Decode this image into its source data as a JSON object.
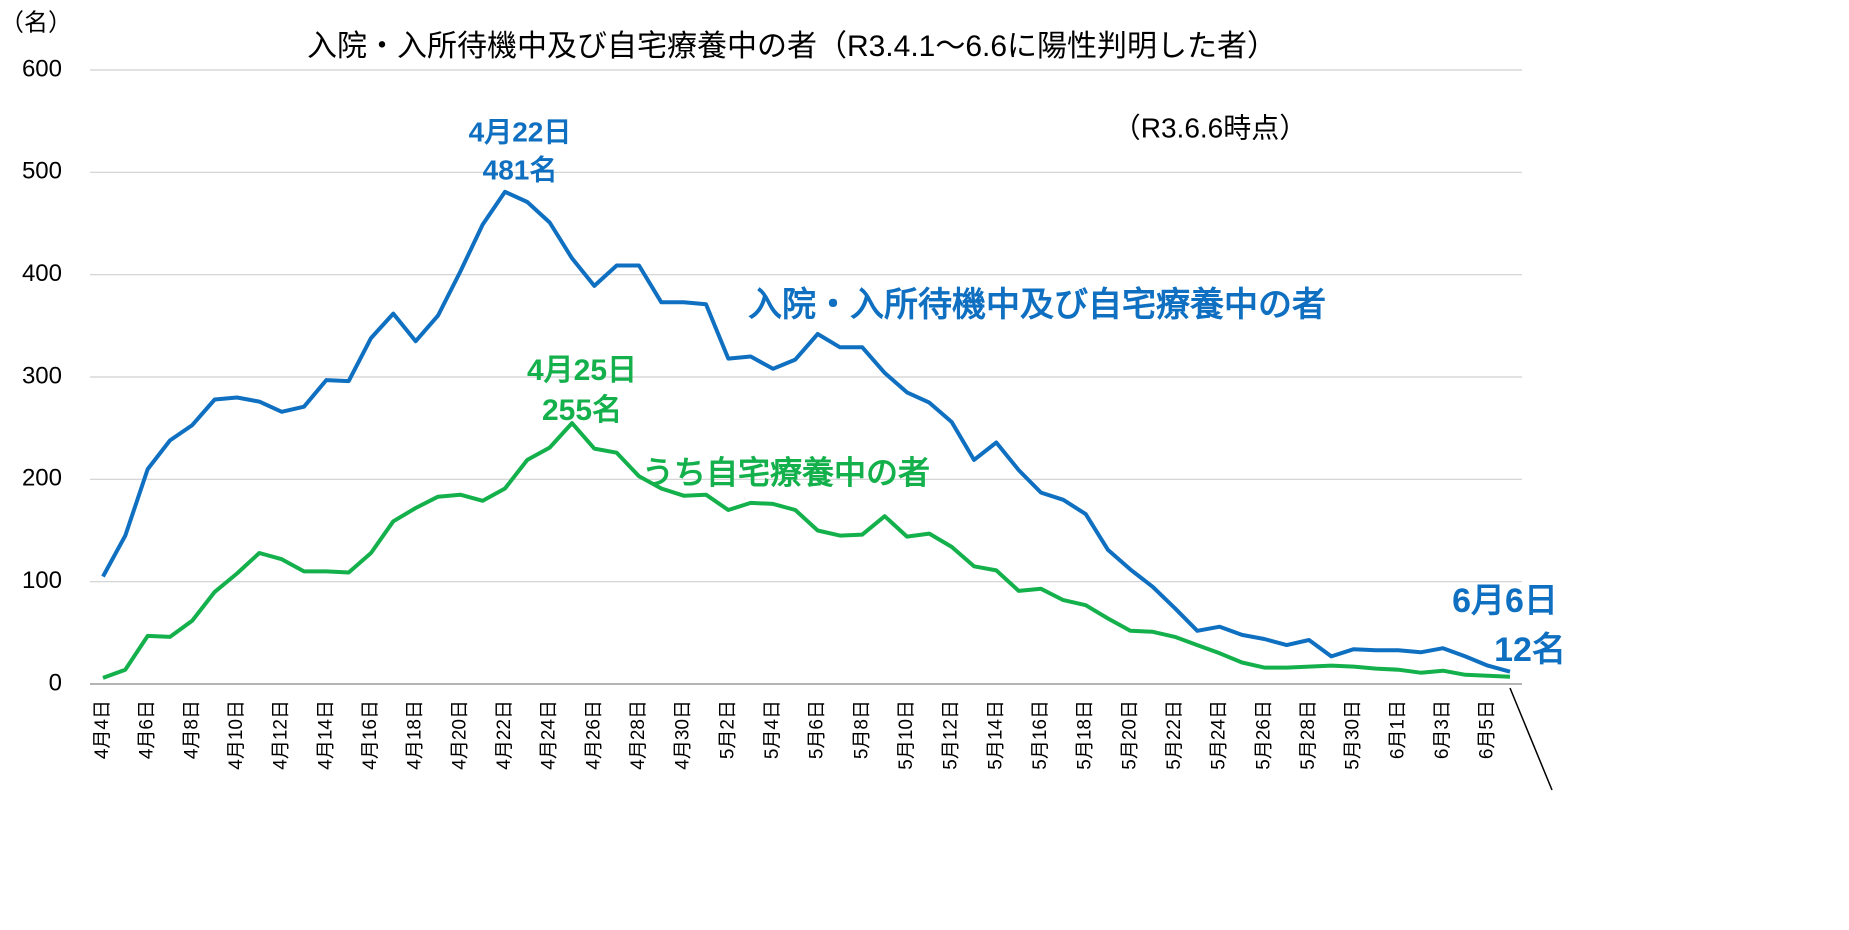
{
  "chart_data": {
    "type": "line",
    "title": "入院・入所待機中及び自宅療養中の者（R3.4.1～6.6に陽性判明した者）",
    "subtitle": "（R3.6.6時点）",
    "y_label": "（名）",
    "categories": [
      "4月4日",
      null,
      "4月6日",
      null,
      "4月8日",
      null,
      "4月10日",
      null,
      "4月12日",
      null,
      "4月14日",
      null,
      "4月16日",
      null,
      "4月18日",
      null,
      "4月20日",
      null,
      "4月22日",
      null,
      "4月24日",
      null,
      "4月26日",
      null,
      "4月28日",
      null,
      "4月30日",
      null,
      "5月2日",
      null,
      "5月4日",
      null,
      "5月6日",
      null,
      "5月8日",
      null,
      "5月10日",
      null,
      "5月12日",
      null,
      "5月14日",
      null,
      "5月16日",
      null,
      "5月18日",
      null,
      "5月20日",
      null,
      "5月22日",
      null,
      "5月24日",
      null,
      "5月26日",
      null,
      "5月28日",
      null,
      "5月30日",
      null,
      "6月1日",
      null,
      "6月3日",
      null,
      "6月5日",
      null
    ],
    "series": [
      {
        "name": "入院・入所待機中及び自宅療養中の者",
        "color": "#0f6fc0",
        "values": [
          105,
          145,
          210,
          238,
          253,
          278,
          280,
          276,
          266,
          271,
          297,
          296,
          338,
          362,
          335,
          360,
          403,
          449,
          481,
          471,
          451,
          416,
          389,
          409,
          409,
          373,
          373,
          371,
          318,
          320,
          308,
          317,
          342,
          329,
          329,
          304,
          285,
          275,
          256,
          219,
          236,
          209,
          187,
          180,
          166,
          131,
          112,
          95,
          74,
          52,
          56,
          48,
          44,
          38,
          43,
          27,
          34,
          33,
          33,
          31,
          35,
          27,
          18,
          12
        ]
      },
      {
        "name": "うち自宅療養中の者",
        "color": "#13b04b",
        "values": [
          6,
          14,
          47,
          46,
          62,
          90,
          108,
          128,
          122,
          110,
          110,
          109,
          128,
          159,
          172,
          183,
          185,
          179,
          191,
          219,
          231,
          255,
          230,
          226,
          203,
          191,
          184,
          185,
          170,
          177,
          176,
          170,
          150,
          145,
          146,
          164,
          144,
          147,
          134,
          115,
          111,
          91,
          93,
          82,
          77,
          64,
          52,
          51,
          46,
          38,
          30,
          21,
          16,
          16,
          17,
          18,
          17,
          15,
          14,
          11,
          13,
          9,
          8,
          7
        ]
      }
    ],
    "annotations": [
      "4月22日",
      "481名",
      "4月25日",
      "255名",
      "6月6日",
      "12名"
    ],
    "ylim": [
      0,
      600
    ],
    "yticks": [
      0,
      100,
      200,
      300,
      400,
      500,
      600
    ],
    "grid": true
  }
}
